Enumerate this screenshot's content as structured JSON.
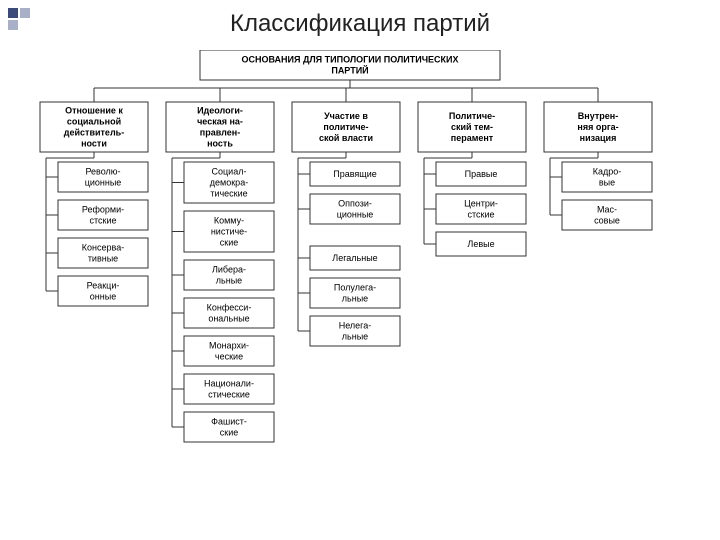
{
  "page_title": "Классификация партий",
  "diagram": {
    "type": "tree",
    "background_color": "#ffffff",
    "border_color": "#333333",
    "text_color": "#000000",
    "title_fontsize": 24,
    "node_fontsize": 9,
    "root": {
      "label": "ОСНОВАНИЯ ДЛЯ ТИПОЛОГИИ ПОЛИТИЧЕСКИХ ПАРТИЙ",
      "bold": true
    },
    "columns": [
      {
        "header": [
          "Отношение к",
          "социальной",
          "действитель-",
          "ности"
        ],
        "items": [
          [
            "Револю-",
            "ционные"
          ],
          [
            "Реформи-",
            "стские"
          ],
          [
            "Консерва-",
            "тивные"
          ],
          [
            "Реакци-",
            "онные"
          ]
        ]
      },
      {
        "header": [
          "Идеологи-",
          "ческая на-",
          "правлен-",
          "ность"
        ],
        "items": [
          [
            "Социал-",
            "демокра-",
            "тические"
          ],
          [
            "Комму-",
            "нистиче-",
            "ские"
          ],
          [
            "Либера-",
            "льные"
          ],
          [
            "Конфесси-",
            "ональные"
          ],
          [
            "Монархи-",
            "ческие"
          ],
          [
            "Национали-",
            "стические"
          ],
          [
            "Фашист-",
            "ские"
          ]
        ]
      },
      {
        "header": [
          "Участие в",
          "политиче-",
          "ской власти"
        ],
        "groups": [
          {
            "items": [
              [
                "Правящие"
              ],
              [
                "Оппози-",
                "ционные"
              ]
            ]
          },
          {
            "items": [
              [
                "Легальные"
              ],
              [
                "Полулега-",
                "льные"
              ],
              [
                "Нелега-",
                "льные"
              ]
            ]
          }
        ]
      },
      {
        "header": [
          "Политиче-",
          "ский тем-",
          "перамент"
        ],
        "items": [
          [
            "Правые"
          ],
          [
            "Центри-",
            "стские"
          ],
          [
            "Левые"
          ]
        ]
      },
      {
        "header": [
          "Внутрен-",
          "няя орга-",
          "низация"
        ],
        "items": [
          [
            "Кадро-",
            "вые"
          ],
          [
            "Мас-",
            "совые"
          ]
        ]
      }
    ]
  },
  "decor_colors": {
    "dark": "#3a4a7a",
    "light": "#a8b0c8"
  }
}
